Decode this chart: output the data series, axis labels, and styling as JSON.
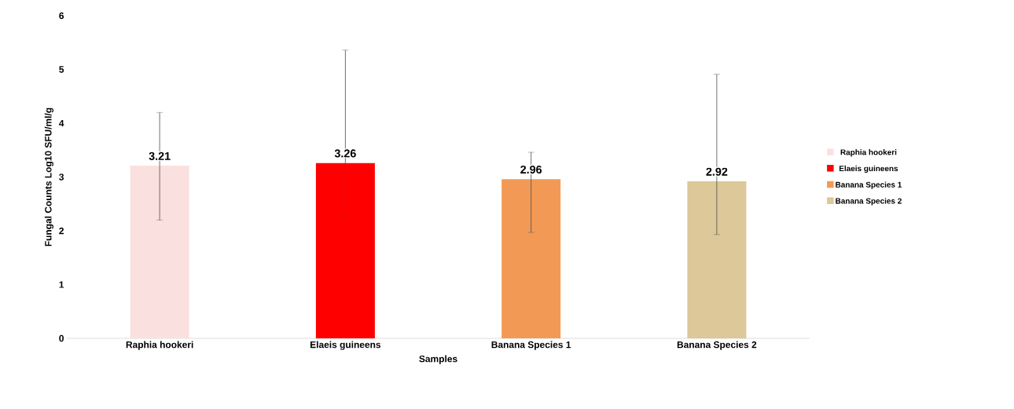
{
  "chart_data": {
    "type": "bar",
    "xlabel": "Samples",
    "ylabel": "Fungal Counts Log10 SFU/ml/g",
    "categories": [
      "Raphia hookeri",
      "Elaeis guineens",
      "Banana Species 1",
      "Banana Species 2"
    ],
    "series": [
      {
        "name": "Raphia hookeri",
        "color": "#fbe0e0",
        "values": [
          3.21,
          null,
          null,
          null
        ],
        "errors": [
          [
            2.2,
            4.2
          ],
          null,
          null,
          null
        ]
      },
      {
        "name": "Elaeis guineens",
        "color": "#ff0000",
        "values": [
          null,
          3.26,
          null,
          null
        ],
        "errors": [
          null,
          [
            2.28,
            5.36
          ],
          null,
          null
        ]
      },
      {
        "name": "Banana Species 1",
        "color": "#f29a55",
        "values": [
          null,
          null,
          2.96,
          null
        ],
        "errors": [
          null,
          null,
          [
            1.97,
            3.46
          ],
          null
        ]
      },
      {
        "name": "Banana Species 2",
        "color": "#dcc898",
        "values": [
          null,
          null,
          null,
          2.92
        ],
        "errors": [
          null,
          null,
          null,
          [
            1.93,
            4.91
          ]
        ]
      }
    ],
    "ylim": [
      0,
      6
    ],
    "yticks": [
      0,
      1,
      2,
      3,
      4,
      5,
      6
    ],
    "grid": false,
    "legend": "right",
    "data_labels": true
  }
}
